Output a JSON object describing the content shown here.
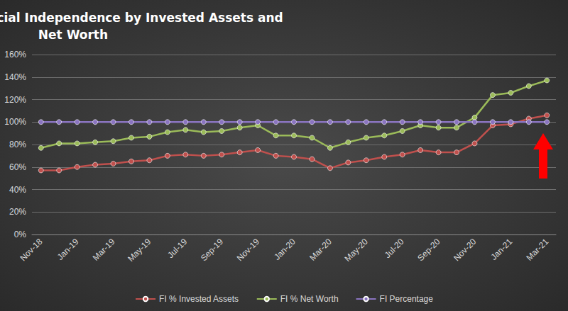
{
  "chart_data": {
    "type": "line",
    "title": "Percentage to Financial Independence by Invested Assets and Net Worth",
    "categories": [
      "Nov-18",
      null,
      "Jan-19",
      null,
      "Mar-19",
      null,
      "May-19",
      null,
      "Jul-19",
      null,
      "Sep-19",
      null,
      "Nov-19",
      null,
      "Jan-20",
      null,
      "Mar-20",
      null,
      "May-20",
      null,
      "Jul-20",
      null,
      "Sep-20",
      null,
      "Nov-20",
      null,
      "Jan-21",
      null,
      "Mar-21"
    ],
    "series": [
      {
        "name": "FI % Invested Assets",
        "color": "#c0504d",
        "marker": "circle",
        "line_style": "solid",
        "values": [
          57,
          57,
          60,
          62,
          63,
          65,
          66,
          70,
          71,
          70,
          71,
          73,
          75,
          70,
          69,
          67,
          59,
          64,
          66,
          69,
          71,
          75,
          73,
          73,
          81,
          97,
          98,
          103,
          106
        ]
      },
      {
        "name": "FI % Net Worth",
        "color": "#9bbb59",
        "marker": "circle",
        "line_style": "solid",
        "values": [
          77,
          81,
          81,
          82,
          83,
          86,
          87,
          91,
          93,
          91,
          92,
          95,
          97,
          88,
          88,
          86,
          77,
          82,
          86,
          88,
          92,
          97,
          95,
          95,
          104,
          124,
          126,
          132,
          137
        ]
      },
      {
        "name": "FI Percentage",
        "color": "#8a74c0",
        "marker": "circle",
        "line_style": "solid",
        "values": [
          100,
          100,
          100,
          100,
          100,
          100,
          100,
          100,
          100,
          100,
          100,
          100,
          100,
          100,
          100,
          100,
          100,
          100,
          100,
          100,
          100,
          100,
          100,
          100,
          100,
          100,
          100,
          100,
          100
        ]
      }
    ],
    "ylim": [
      0,
      160
    ],
    "yticks": [
      {
        "value": 0,
        "label": "0%"
      },
      {
        "value": 20,
        "label": "20%"
      },
      {
        "value": 40,
        "label": "40%"
      },
      {
        "value": 60,
        "label": "60%"
      },
      {
        "value": 80,
        "label": "80%"
      },
      {
        "value": 100,
        "label": "100%"
      },
      {
        "value": 120,
        "label": "120%"
      },
      {
        "value": 140,
        "label": "140%"
      },
      {
        "value": 160,
        "label": "160%"
      }
    ],
    "grid": true,
    "legend": "bottom"
  }
}
